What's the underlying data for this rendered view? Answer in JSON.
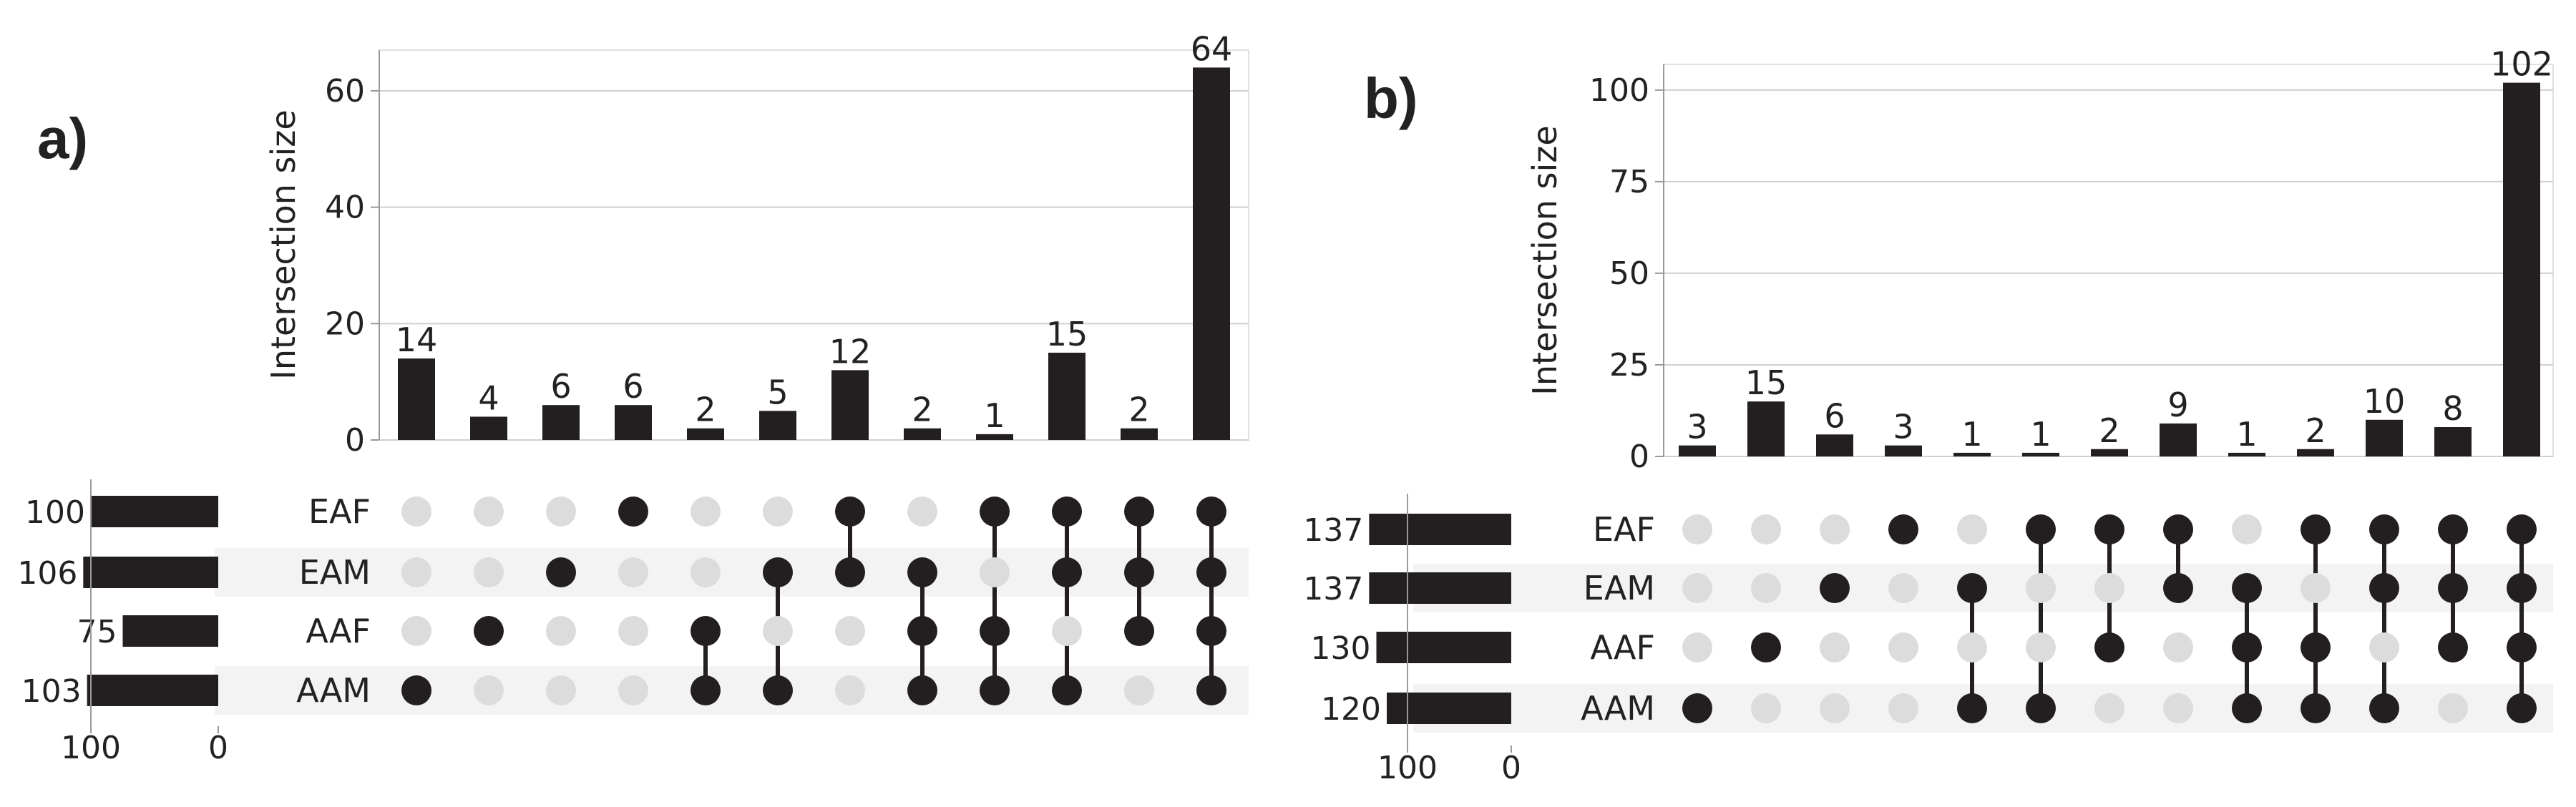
{
  "panels": {
    "a": {
      "tag": "a)"
    },
    "b": {
      "tag": "b)"
    }
  },
  "colors": {
    "bar": "#231f20",
    "dot_on": "#231f20",
    "dot_off": "#dcdcdc",
    "stripe": "#f3f3f3",
    "grid": "#cfcfcf",
    "axis": "#999999"
  },
  "chart_data": [
    {
      "type": "bar",
      "panel": "a)",
      "ylabel": "Intersection size",
      "yticks": [
        0,
        20,
        40,
        60
      ],
      "ylim": [
        0,
        67
      ],
      "sets": [
        "EAF",
        "EAM",
        "AAF",
        "AAM"
      ],
      "set_sizes": [
        100,
        106,
        75,
        103
      ],
      "set_size_ticks": [
        100,
        0
      ],
      "values": [
        14,
        4,
        6,
        6,
        2,
        5,
        12,
        2,
        1,
        15,
        2,
        64
      ],
      "intersections": [
        [
          "AAM"
        ],
        [
          "AAF"
        ],
        [
          "EAM"
        ],
        [
          "EAF"
        ],
        [
          "AAF",
          "AAM"
        ],
        [
          "EAM",
          "AAM"
        ],
        [
          "EAF",
          "EAM"
        ],
        [
          "EAM",
          "AAF",
          "AAM"
        ],
        [
          "EAF",
          "AAF",
          "AAM"
        ],
        [
          "EAF",
          "EAM",
          "AAM"
        ],
        [
          "EAF",
          "EAM",
          "AAF"
        ],
        [
          "EAF",
          "EAM",
          "AAF",
          "AAM"
        ]
      ]
    },
    {
      "type": "bar",
      "panel": "b)",
      "ylabel": "Intersection size",
      "yticks": [
        0,
        25,
        50,
        75,
        100
      ],
      "ylim": [
        0,
        107
      ],
      "sets": [
        "EAF",
        "EAM",
        "AAF",
        "AAM"
      ],
      "set_sizes": [
        137,
        137,
        130,
        120
      ],
      "set_size_ticks": [
        100,
        0
      ],
      "values": [
        3,
        15,
        6,
        3,
        1,
        1,
        2,
        9,
        1,
        2,
        10,
        8,
        102
      ],
      "intersections": [
        [
          "AAM"
        ],
        [
          "AAF"
        ],
        [
          "EAM"
        ],
        [
          "EAF"
        ],
        [
          "EAM",
          "AAM"
        ],
        [
          "EAF",
          "AAM"
        ],
        [
          "EAF",
          "AAF"
        ],
        [
          "EAF",
          "EAM"
        ],
        [
          "EAM",
          "AAF",
          "AAM"
        ],
        [
          "EAF",
          "AAF",
          "AAM"
        ],
        [
          "EAF",
          "EAM",
          "AAM"
        ],
        [
          "EAF",
          "EAM",
          "AAF"
        ],
        [
          "EAF",
          "EAM",
          "AAF",
          "AAM"
        ]
      ]
    }
  ]
}
